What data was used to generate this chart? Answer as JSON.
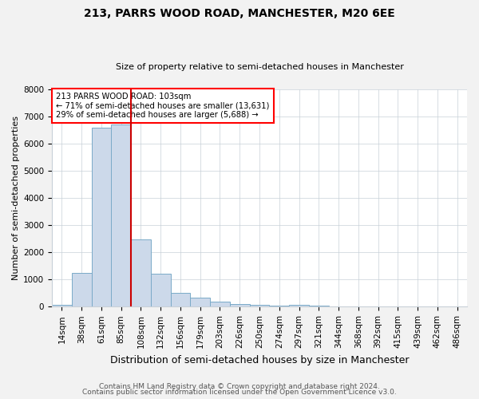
{
  "title": "213, PARRS WOOD ROAD, MANCHESTER, M20 6EE",
  "subtitle": "Size of property relative to semi-detached houses in Manchester",
  "xlabel": "Distribution of semi-detached houses by size in Manchester",
  "ylabel": "Number of semi-detached properties",
  "bar_labels": [
    "14sqm",
    "38sqm",
    "61sqm",
    "85sqm",
    "108sqm",
    "132sqm",
    "156sqm",
    "179sqm",
    "203sqm",
    "226sqm",
    "250sqm",
    "274sqm",
    "297sqm",
    "321sqm",
    "344sqm",
    "368sqm",
    "392sqm",
    "415sqm",
    "439sqm",
    "462sqm",
    "486sqm"
  ],
  "bar_values": [
    60,
    1250,
    6600,
    6700,
    2480,
    1200,
    520,
    330,
    190,
    110,
    75,
    45,
    75,
    35,
    0,
    0,
    0,
    0,
    0,
    0,
    0
  ],
  "bar_color": "#ccd9ea",
  "bar_edge_color": "#7aaac8",
  "vline_x_index": 4,
  "vline_color": "#cc0000",
  "annotation_title": "213 PARRS WOOD ROAD: 103sqm",
  "annotation_line1": "← 71% of semi-detached houses are smaller (13,631)",
  "annotation_line2": "29% of semi-detached houses are larger (5,688) →",
  "ylim": [
    0,
    8000
  ],
  "yticks": [
    0,
    1000,
    2000,
    3000,
    4000,
    5000,
    6000,
    7000,
    8000
  ],
  "footer1": "Contains HM Land Registry data © Crown copyright and database right 2024.",
  "footer2": "Contains public sector information licensed under the Open Government Licence v3.0.",
  "bg_color": "#f2f2f2",
  "plot_bg_color": "#ffffff",
  "title_fontsize": 10,
  "subtitle_fontsize": 8,
  "ylabel_fontsize": 8,
  "xlabel_fontsize": 9,
  "tick_fontsize": 7.5,
  "footer_fontsize": 6.5
}
